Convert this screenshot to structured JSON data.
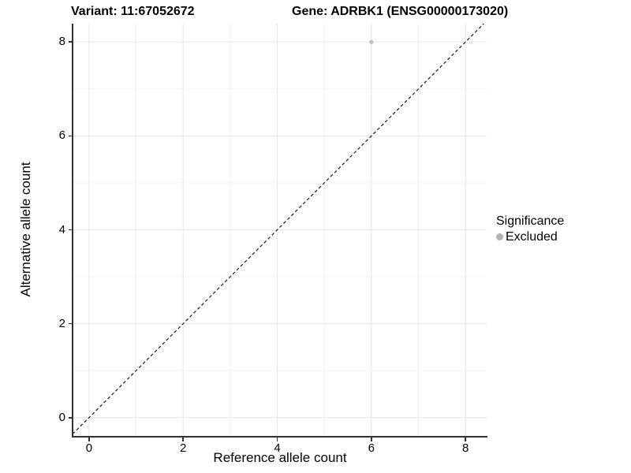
{
  "titles": {
    "variant": "Variant: 11:67052672",
    "gene": "Gene: ADRBK1 (ENSG00000173020)"
  },
  "axes": {
    "x_label": "Reference allele count",
    "y_label": "Alternative allele count"
  },
  "legend": {
    "title": "Significance",
    "items": [
      {
        "label": "Excluded",
        "color": "#b4b4b4"
      }
    ]
  },
  "chart_data": {
    "type": "scatter",
    "title": "Variant: 11:67052672   Gene: ADRBK1 (ENSG00000173020)",
    "xlabel": "Reference allele count",
    "ylabel": "Alternative allele count",
    "xlim": [
      -0.35,
      8.45
    ],
    "ylim": [
      -0.39,
      8.39
    ],
    "x_ticks": [
      0,
      2,
      4,
      6,
      8
    ],
    "y_ticks": [
      0,
      2,
      4,
      6,
      8
    ],
    "x_minor_ticks": [
      1,
      3,
      5,
      7
    ],
    "y_minor_ticks": [
      1,
      3,
      5,
      7
    ],
    "grid": true,
    "legend_position": "right",
    "series": [
      {
        "name": "Excluded",
        "color": "#c2c2c2",
        "points": [
          {
            "x": 6,
            "y": 8
          }
        ]
      }
    ],
    "reference_line": {
      "type": "identity",
      "slope": 1,
      "intercept": 0,
      "style": "dashed",
      "color": "#1a1a1a"
    }
  },
  "colors": {
    "background": "#ffffff",
    "grid_major": "#e6e6e6",
    "grid_minor": "#f2f2f2",
    "axis_line": "#333333",
    "text": "#000000"
  }
}
